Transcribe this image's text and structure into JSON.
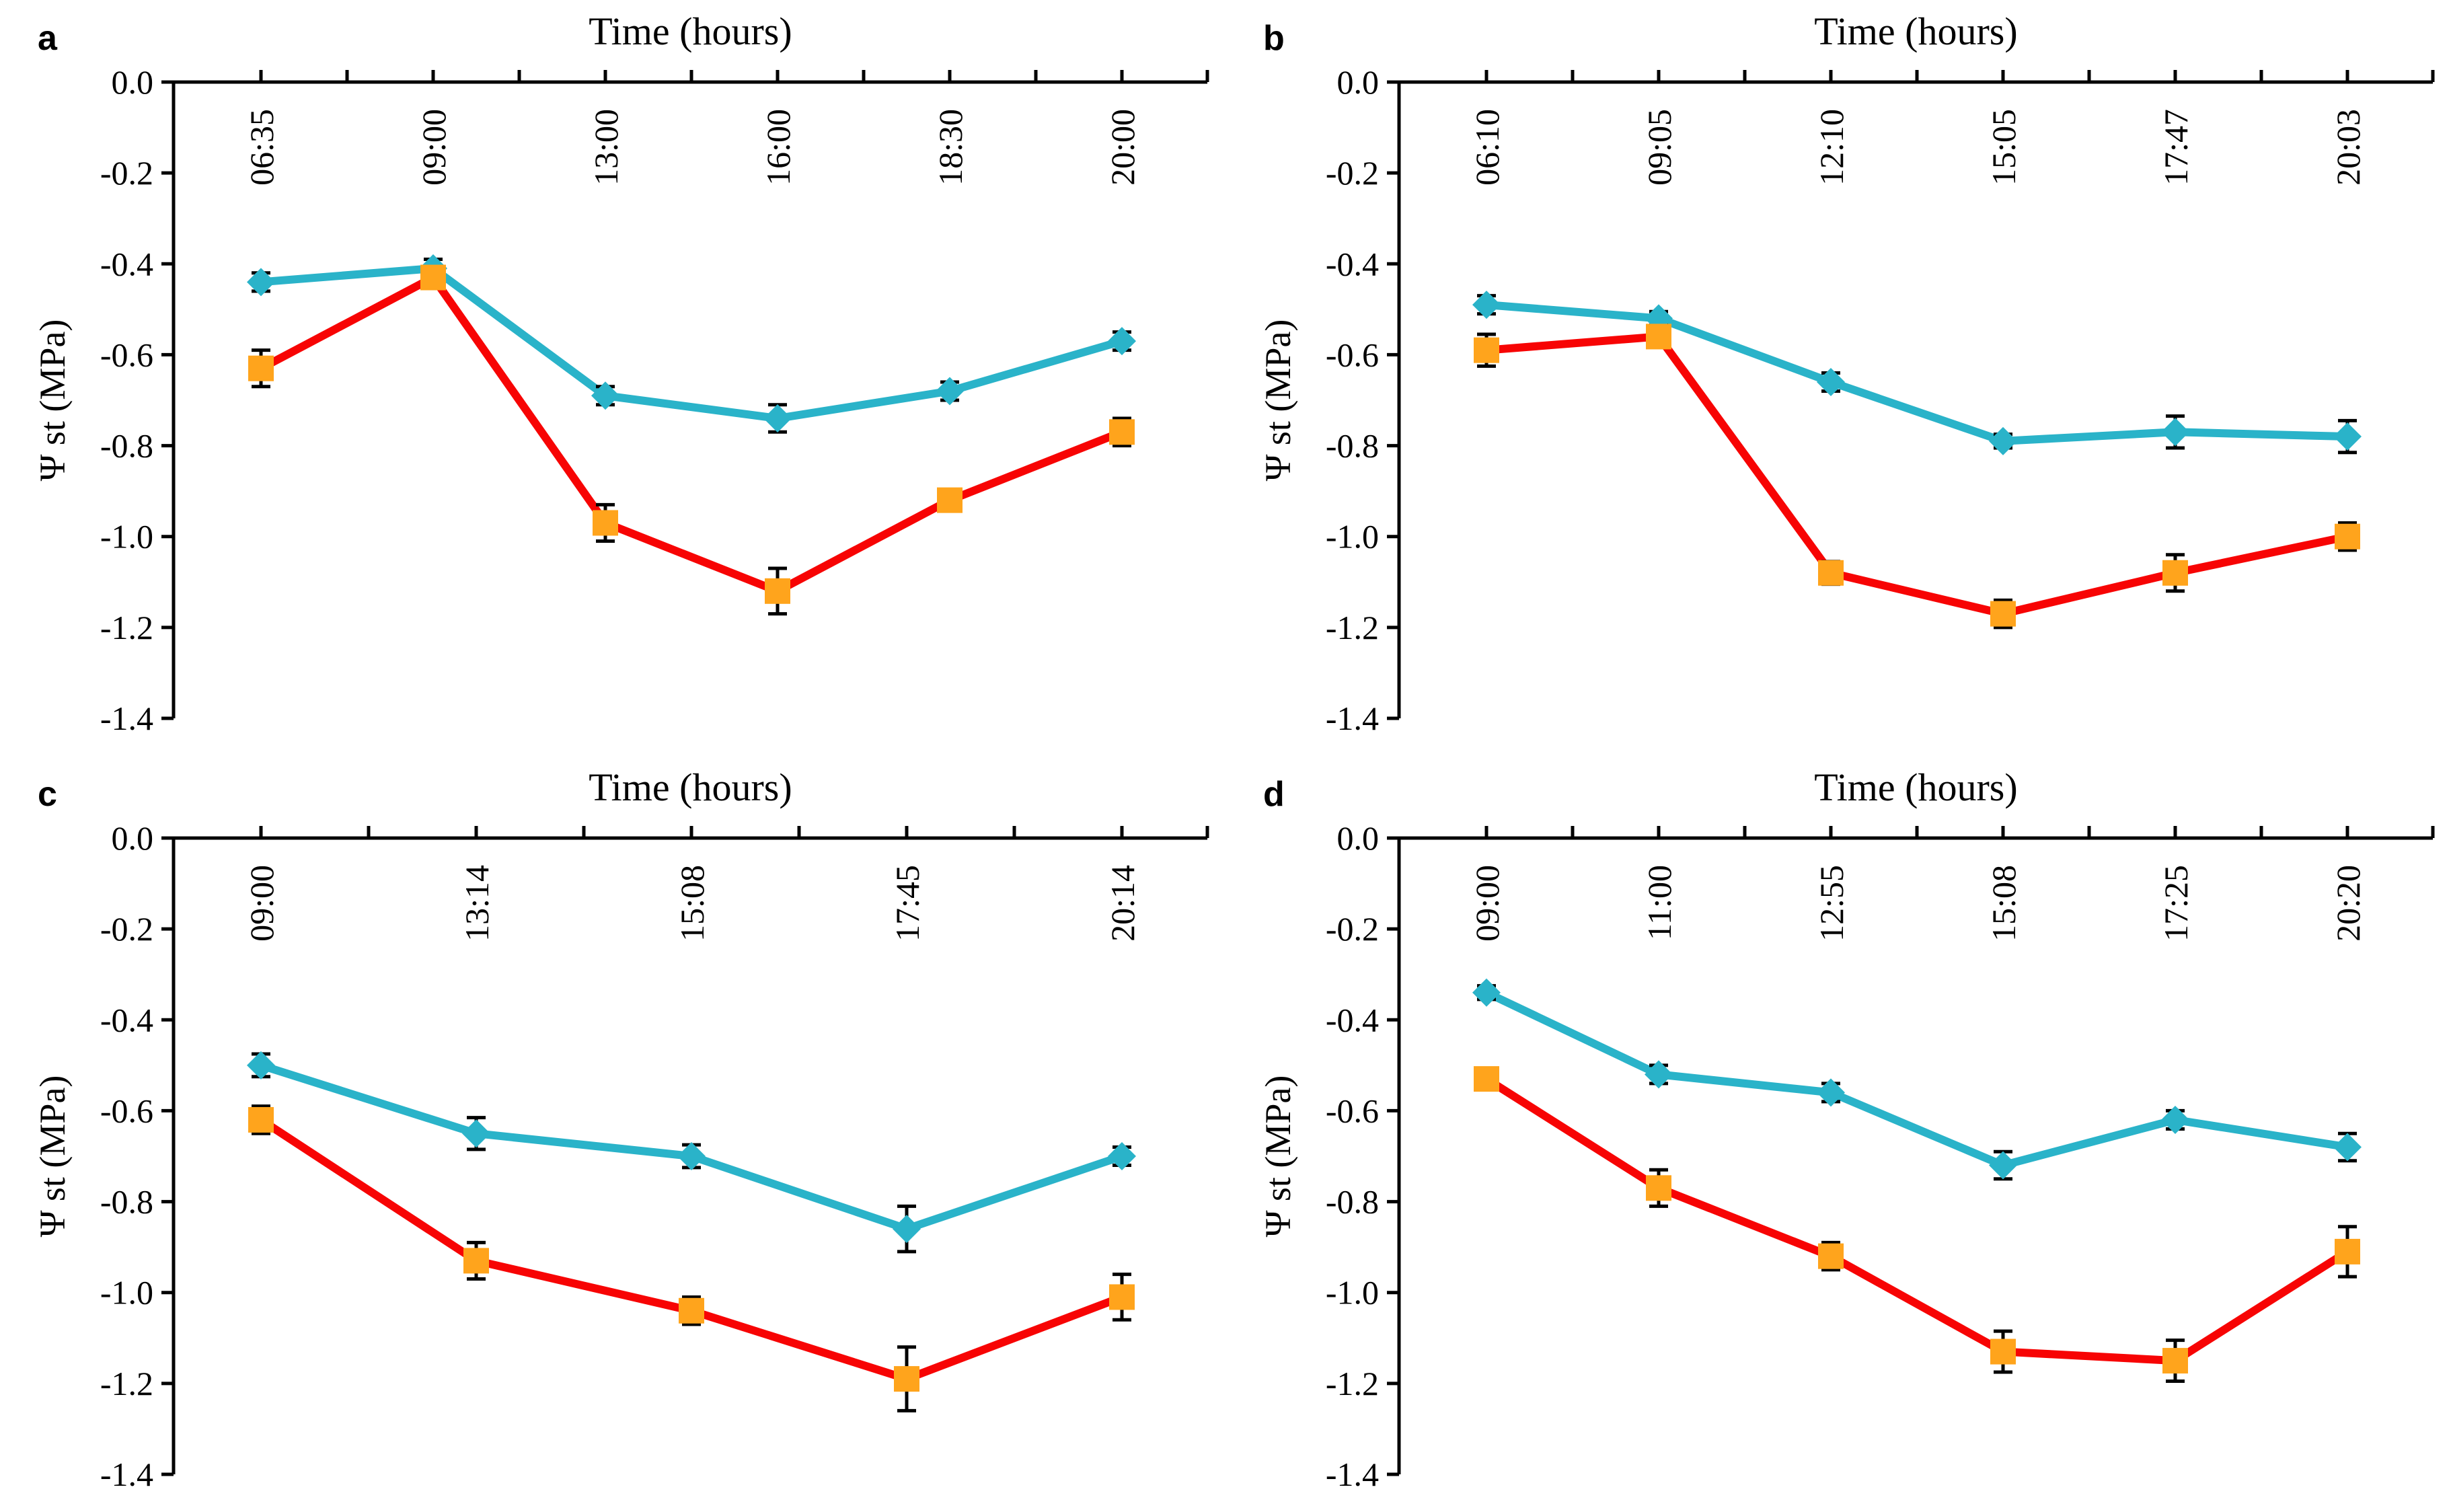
{
  "figure": {
    "title": "Time (hours)",
    "y_axis_label": "Ψ st (MPa)",
    "y_axis": {
      "min": -1.4,
      "max": 0.0,
      "step": 0.2,
      "tick_labels": [
        "0.0",
        "-0.2",
        "-0.4",
        "-0.6",
        "-0.8",
        "-1.0",
        "-1.2",
        "-1.4"
      ]
    },
    "colors": {
      "diamond_series": "#2AB3C9",
      "square_series_line": "#F70404",
      "square_series_marker": "#FFA41C",
      "error_bar": "#000000",
      "axis": "#000000"
    },
    "legend": "none"
  },
  "chart_data": [
    {
      "type": "line",
      "panel_label": "a",
      "title": "Time (hours)",
      "xlabel": "Time (hours)",
      "ylabel": "Ψ st (MPa)",
      "ylim": [
        -1.4,
        0.0
      ],
      "grid": false,
      "categories": [
        "06:35",
        "09:00",
        "13:00",
        "16:00",
        "18:30",
        "20:00"
      ],
      "series": [
        {
          "name": "diamond-series",
          "marker": "diamond",
          "values": [
            -0.44,
            -0.41,
            -0.69,
            -0.74,
            -0.68,
            -0.57
          ],
          "errors": [
            0.02,
            0.02,
            0.02,
            0.03,
            0.02,
            0.02
          ]
        },
        {
          "name": "square-series",
          "marker": "square",
          "values": [
            -0.63,
            -0.43,
            -0.97,
            -1.12,
            -0.92,
            -0.77
          ],
          "errors": [
            0.04,
            0.02,
            0.04,
            0.05,
            0.02,
            0.03
          ]
        }
      ]
    },
    {
      "type": "line",
      "panel_label": "b",
      "title": "Time (hours)",
      "xlabel": "Time (hours)",
      "ylabel": "Ψ st (MPa)",
      "ylim": [
        -1.4,
        0.0
      ],
      "grid": false,
      "categories": [
        "06:10",
        "09:05",
        "12:10",
        "15:05",
        "17:47",
        "20:03"
      ],
      "series": [
        {
          "name": "diamond-series",
          "marker": "diamond",
          "values": [
            -0.49,
            -0.52,
            -0.66,
            -0.79,
            -0.77,
            -0.78
          ],
          "errors": [
            0.02,
            0.015,
            0.02,
            0.015,
            0.035,
            0.035
          ]
        },
        {
          "name": "square-series",
          "marker": "square",
          "values": [
            -0.59,
            -0.56,
            -1.08,
            -1.17,
            -1.08,
            -1.0
          ],
          "errors": [
            0.035,
            0.02,
            0.025,
            0.03,
            0.04,
            0.03
          ]
        }
      ]
    },
    {
      "type": "line",
      "panel_label": "c",
      "title": "Time (hours)",
      "xlabel": "Time (hours)",
      "ylabel": "Ψ st (MPa)",
      "ylim": [
        -1.4,
        0.0
      ],
      "grid": false,
      "categories": [
        "09:00",
        "13:14",
        "15:08",
        "17:45",
        "20:14"
      ],
      "series": [
        {
          "name": "diamond-series",
          "marker": "diamond",
          "values": [
            -0.5,
            -0.65,
            -0.7,
            -0.86,
            -0.7
          ],
          "errors": [
            0.025,
            0.035,
            0.025,
            0.05,
            0.02
          ]
        },
        {
          "name": "square-series",
          "marker": "square",
          "values": [
            -0.62,
            -0.93,
            -1.04,
            -1.19,
            -1.01
          ],
          "errors": [
            0.03,
            0.04,
            0.03,
            0.07,
            0.05
          ]
        }
      ]
    },
    {
      "type": "line",
      "panel_label": "d",
      "title": "Time (hours)",
      "xlabel": "Time (hours)",
      "ylabel": "Ψ st (MPa)",
      "ylim": [
        -1.4,
        0.0
      ],
      "grid": false,
      "categories": [
        "09:00",
        "11:00",
        "12:55",
        "15:08",
        "17:25",
        "20:20"
      ],
      "series": [
        {
          "name": "diamond-series",
          "marker": "diamond",
          "values": [
            -0.34,
            -0.52,
            -0.56,
            -0.72,
            -0.62,
            -0.68
          ],
          "errors": [
            0.015,
            0.02,
            0.02,
            0.03,
            0.02,
            0.03
          ]
        },
        {
          "name": "square-series",
          "marker": "square",
          "values": [
            -0.53,
            -0.77,
            -0.92,
            -1.13,
            -1.15,
            -0.91
          ],
          "errors": [
            0.02,
            0.04,
            0.03,
            0.045,
            0.045,
            0.055
          ]
        }
      ]
    }
  ]
}
